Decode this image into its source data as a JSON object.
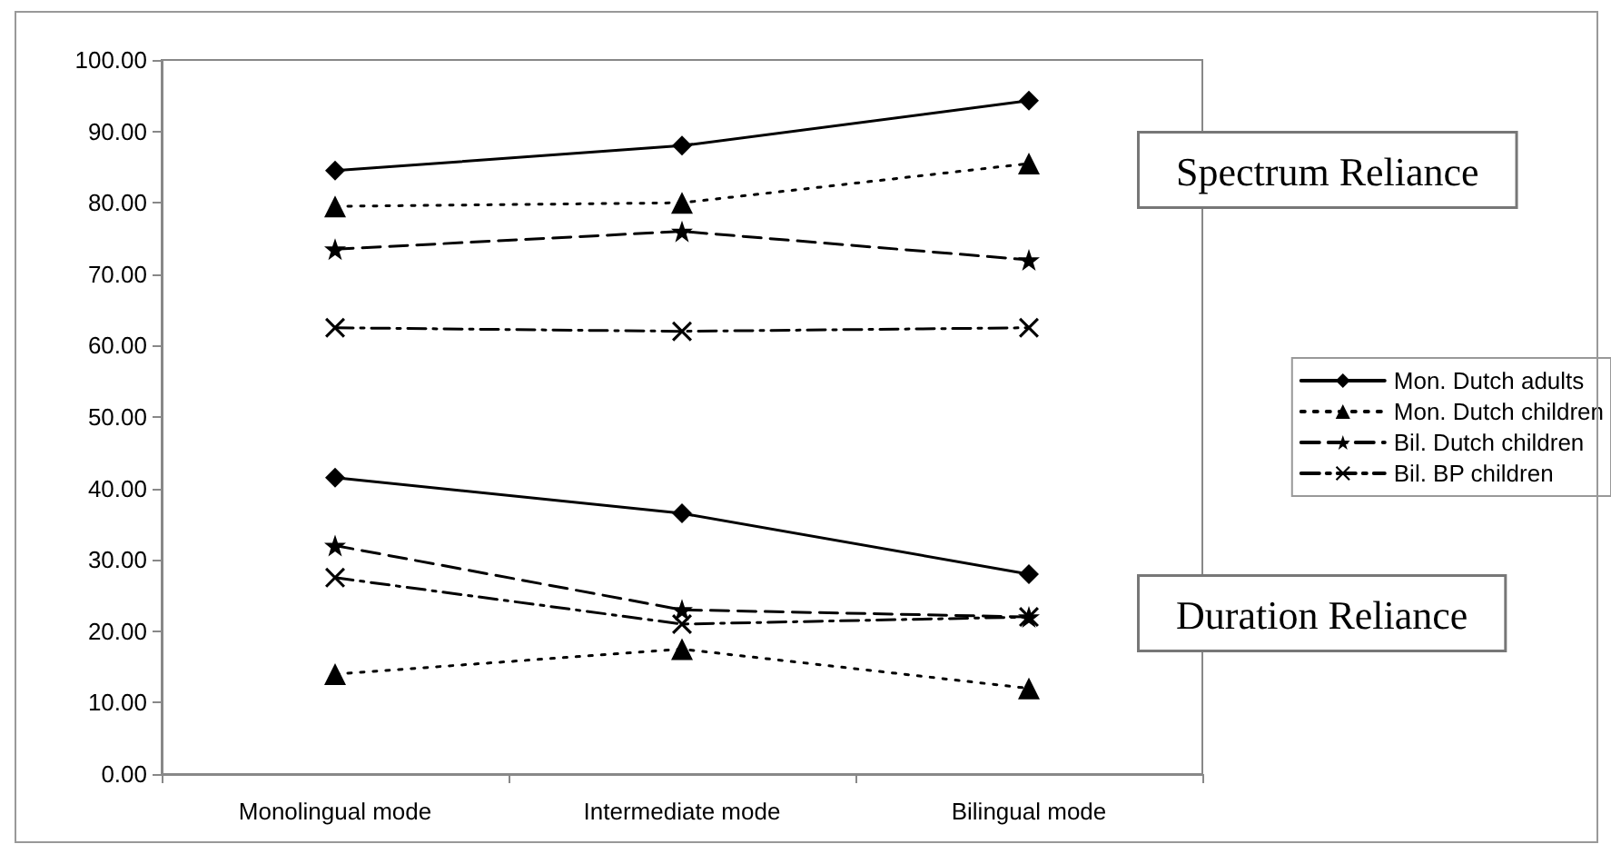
{
  "chart_data": {
    "type": "line",
    "categories": [
      "Monolingual mode",
      "Intermediate mode",
      "Bilingual mode"
    ],
    "series": [
      {
        "name": "Mon. Dutch adults",
        "color": "#000000",
        "marker": "diamond",
        "line_style": "solid",
        "values": [
          84.5,
          88.0,
          94.3
        ]
      },
      {
        "name": "Mon. Dutch children",
        "color": "#000000",
        "marker": "triangle",
        "line_style": "dotted",
        "values": [
          79.5,
          80.0,
          85.5
        ]
      },
      {
        "name": "Bil. Dutch children",
        "color": "#000000",
        "marker": "star",
        "line_style": "dashed",
        "values": [
          73.5,
          76.0,
          72.0
        ]
      },
      {
        "name": "Bil. BP children",
        "color": "#000000",
        "marker": "cross",
        "line_style": "dashdot",
        "values": [
          62.5,
          62.0,
          62.5
        ]
      },
      {
        "color": "#000000",
        "marker": "diamond",
        "line_style": "solid",
        "values": [
          41.5,
          36.5,
          28.0
        ]
      },
      {
        "color": "#000000",
        "marker": "triangle",
        "line_style": "dotted",
        "values": [
          14.0,
          17.5,
          12.0
        ]
      },
      {
        "color": "#000000",
        "marker": "star",
        "line_style": "dashed",
        "values": [
          32.0,
          23.0,
          22.0
        ]
      },
      {
        "color": "#000000",
        "marker": "cross",
        "line_style": "dashdot",
        "values": [
          27.5,
          21.0,
          22.0
        ]
      }
    ],
    "ylim": [
      0,
      100
    ],
    "yticks": [
      {
        "value": 0,
        "label": "0.00"
      },
      {
        "value": 10,
        "label": "10.00"
      },
      {
        "value": 20,
        "label": "20.00"
      },
      {
        "value": 30,
        "label": "30.00"
      },
      {
        "value": 40,
        "label": "40.00"
      },
      {
        "value": 50,
        "label": "50.00"
      },
      {
        "value": 60,
        "label": "60.00"
      },
      {
        "value": 70,
        "label": "70.00"
      },
      {
        "value": 80,
        "label": "80.00"
      },
      {
        "value": 90,
        "label": "90.00"
      },
      {
        "value": 100,
        "label": "100.00"
      }
    ],
    "annotations": [
      "Spectrum Reliance",
      "Duration Reliance"
    ],
    "grid": false,
    "legend": "right"
  }
}
